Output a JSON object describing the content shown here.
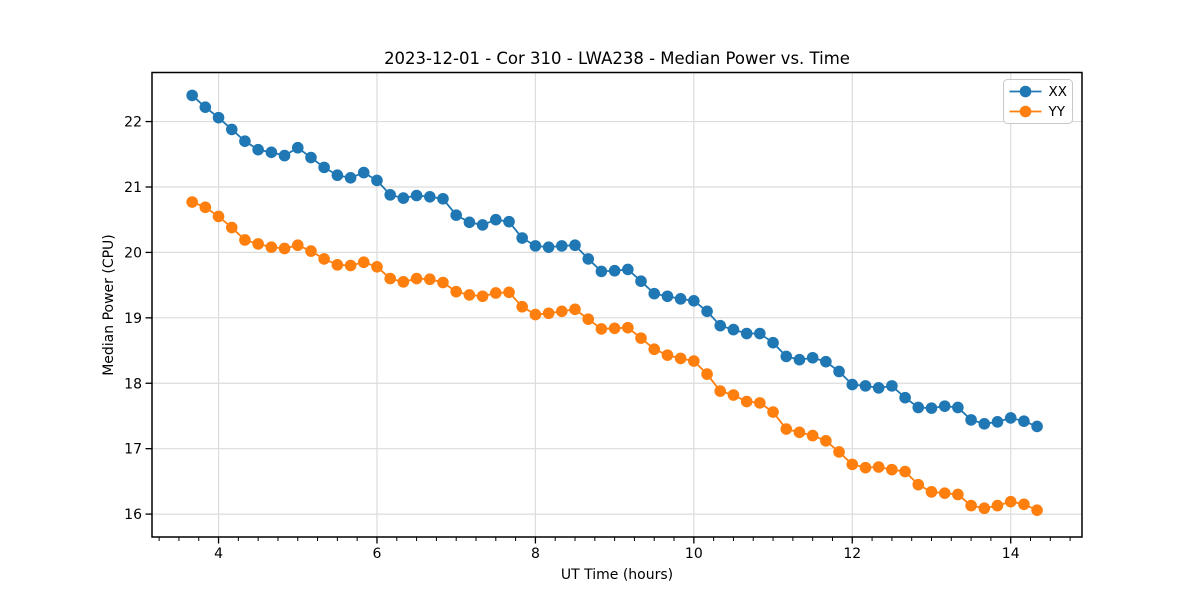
{
  "chart_data": {
    "type": "line",
    "title": "2023-12-01 - Cor 310 - LWA238 - Median Power vs. Time",
    "xlabel": "UT Time (hours)",
    "ylabel": "Median Power (CPU)",
    "xlim": [
      3.16,
      14.9
    ],
    "ylim": [
      15.65,
      22.75
    ],
    "xticks": [
      4,
      6,
      8,
      10,
      12,
      14
    ],
    "yticks": [
      16,
      17,
      18,
      19,
      20,
      21,
      22
    ],
    "x_minor_tick_step": 0.25,
    "grid": true,
    "grid_color": "#dcdcdc",
    "background": "#ffffff",
    "spine_color": "#000000",
    "legend_position": "upper right",
    "legend_labels": [
      "XX",
      "YY"
    ],
    "x": [
      3.667,
      3.833,
      4.0,
      4.167,
      4.333,
      4.5,
      4.667,
      4.833,
      5.0,
      5.167,
      5.333,
      5.5,
      5.667,
      5.833,
      6.0,
      6.167,
      6.333,
      6.5,
      6.667,
      6.833,
      7.0,
      7.167,
      7.333,
      7.5,
      7.667,
      7.833,
      8.0,
      8.167,
      8.333,
      8.5,
      8.667,
      8.833,
      9.0,
      9.167,
      9.333,
      9.5,
      9.667,
      9.833,
      10.0,
      10.167,
      10.333,
      10.5,
      10.667,
      10.833,
      11.0,
      11.167,
      11.333,
      11.5,
      11.667,
      11.833,
      12.0,
      12.167,
      12.333,
      12.5,
      12.667,
      12.833,
      13.0,
      13.167,
      13.333,
      13.5,
      13.667,
      13.833,
      14.0,
      14.167,
      14.333
    ],
    "series": [
      {
        "name": "XX",
        "color": "#1f77b4",
        "marker": "circle",
        "values": [
          22.4,
          22.22,
          22.06,
          21.88,
          21.7,
          21.57,
          21.53,
          21.48,
          21.6,
          21.45,
          21.3,
          21.18,
          21.14,
          21.22,
          21.1,
          20.88,
          20.83,
          20.87,
          20.85,
          20.82,
          20.57,
          20.46,
          20.42,
          20.5,
          20.47,
          20.22,
          20.1,
          20.08,
          20.1,
          20.11,
          19.9,
          19.71,
          19.72,
          19.74,
          19.56,
          19.37,
          19.33,
          19.29,
          19.26,
          19.1,
          18.88,
          18.82,
          18.76,
          18.76,
          18.62,
          18.41,
          18.36,
          18.39,
          18.33,
          18.18,
          17.98,
          17.96,
          17.93,
          17.96,
          17.78,
          17.63,
          17.62,
          17.65,
          17.63,
          17.44,
          17.38,
          17.41,
          17.47,
          17.42,
          17.34
        ]
      },
      {
        "name": "YY",
        "color": "#ff7f0e",
        "marker": "circle",
        "values": [
          20.77,
          20.69,
          20.55,
          20.38,
          20.19,
          20.13,
          20.08,
          20.06,
          20.11,
          20.02,
          19.9,
          19.81,
          19.8,
          19.85,
          19.78,
          19.6,
          19.55,
          19.6,
          19.59,
          19.54,
          19.4,
          19.35,
          19.33,
          19.38,
          19.39,
          19.17,
          19.05,
          19.07,
          19.1,
          19.13,
          18.98,
          18.83,
          18.84,
          18.85,
          18.69,
          18.52,
          18.43,
          18.38,
          18.34,
          18.14,
          17.88,
          17.82,
          17.72,
          17.7,
          17.56,
          17.3,
          17.25,
          17.2,
          17.12,
          16.95,
          16.76,
          16.71,
          16.72,
          16.68,
          16.65,
          16.45,
          16.34,
          16.32,
          16.3,
          16.13,
          16.09,
          16.13,
          16.19,
          16.15,
          16.06
        ]
      }
    ]
  }
}
